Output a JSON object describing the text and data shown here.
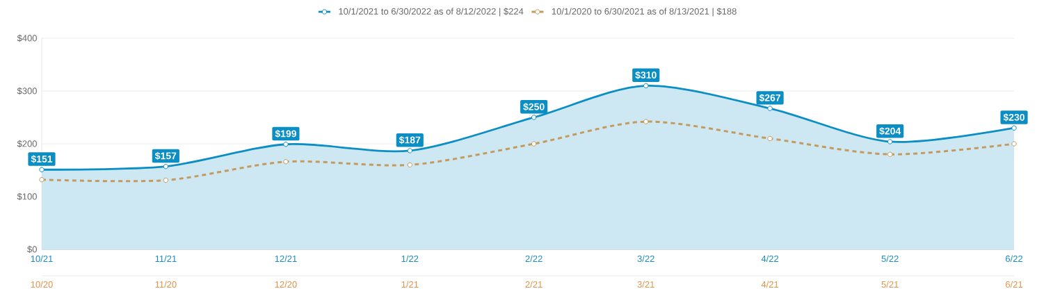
{
  "chart_data": {
    "type": "line",
    "legend": "top",
    "grid": "y",
    "marker": "circle",
    "ylim": [
      0,
      400
    ],
    "yticks": [
      {
        "value": 0,
        "label": "$0"
      },
      {
        "value": 100,
        "label": "$100"
      },
      {
        "value": 200,
        "label": "$200"
      },
      {
        "value": 300,
        "label": "$300"
      },
      {
        "value": 400,
        "label": "$400"
      }
    ],
    "xlim": [
      "2021-10",
      "2022-06"
    ],
    "xticks": [
      {
        "value": "2021-10",
        "label": "10/21"
      },
      {
        "value": "2021-11",
        "label": "11/21"
      },
      {
        "value": "2021-12",
        "label": "12/21"
      },
      {
        "value": "2022-01",
        "label": "1/22"
      },
      {
        "value": "2022-02",
        "label": "2/22"
      },
      {
        "value": "2022-03",
        "label": "3/22"
      },
      {
        "value": "2022-04",
        "label": "4/22"
      },
      {
        "value": "2022-05",
        "label": "5/22"
      },
      {
        "value": "2022-06",
        "label": "6/22"
      }
    ],
    "x2lim": [
      "2020-10",
      "2021-06"
    ],
    "x2ticks": [
      {
        "value": "2020-10",
        "label": "10/20"
      },
      {
        "value": "2020-11",
        "label": "11/20"
      },
      {
        "value": "2020-12",
        "label": "12/20"
      },
      {
        "value": "2021-01",
        "label": "1/21"
      },
      {
        "value": "2021-02",
        "label": "2/21"
      },
      {
        "value": "2021-03",
        "label": "3/21"
      },
      {
        "value": "2021-04",
        "label": "4/21"
      },
      {
        "value": "2021-05",
        "label": "5/21"
      },
      {
        "value": "2021-06",
        "label": "6/21"
      }
    ],
    "series": [
      {
        "name": "10/1/2021 to 6/30/2022 as of 8/12/2022 | $224",
        "type": "area",
        "color": "#0a8ec4",
        "x": [
          "2021-10",
          "2021-11",
          "2021-12",
          "2022-01",
          "2022-02",
          "2022-03",
          "2022-04",
          "2022-05",
          "2022-06"
        ],
        "values": [
          151,
          157,
          199,
          187,
          250,
          310,
          267,
          204,
          230
        ],
        "value_labels": [
          "$151",
          "$157",
          "$199",
          "$187",
          "$250",
          "$310",
          "$267",
          "$204",
          "$230"
        ]
      },
      {
        "name": "10/1/2020 to 6/30/2021 as of 8/13/2021 | $188",
        "axis": "x2",
        "line_style": "dashed",
        "color": "#c49a5e",
        "x": [
          "2020-10",
          "2020-11",
          "2020-12",
          "2021-01",
          "2021-02",
          "2021-03",
          "2021-04",
          "2021-05",
          "2021-06"
        ],
        "values": [
          132,
          131,
          166,
          160,
          200,
          242,
          210,
          180,
          200
        ]
      }
    ]
  }
}
